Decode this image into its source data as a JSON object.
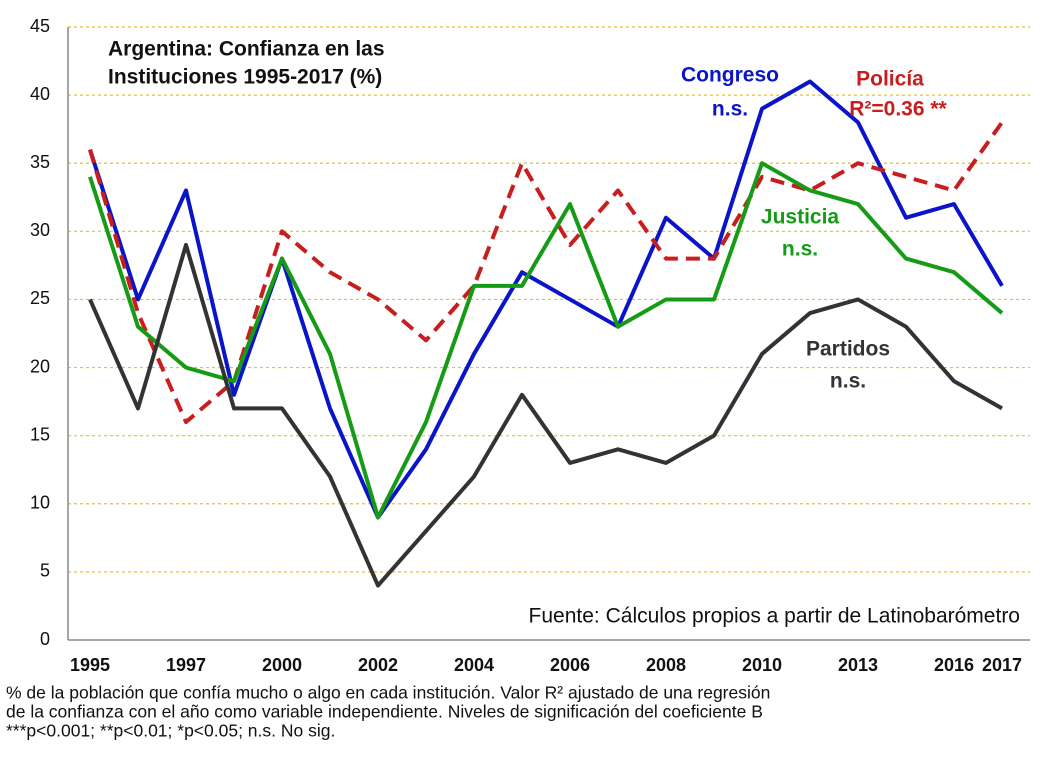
{
  "chart_data": {
    "type": "line",
    "title": [
      "Argentina: Confianza en las",
      "Instituciones 1995-2017 (%)"
    ],
    "categories": [
      "1995",
      null,
      "1997",
      null,
      "2000",
      null,
      "2002",
      null,
      "2004",
      null,
      "2006",
      null,
      "2008",
      null,
      "2010",
      null,
      "2013",
      null,
      "2016",
      "2017"
    ],
    "series": [
      {
        "name": "Congreso",
        "note": "n.s.",
        "color": "#0a14c8",
        "dashed": false,
        "values": [
          36,
          25,
          33,
          18,
          28,
          17,
          9,
          14,
          21,
          27,
          25,
          23,
          31,
          28,
          39,
          41,
          38,
          31,
          32,
          26
        ]
      },
      {
        "name": "Policía",
        "note": "R²=0.36 **",
        "color": "#c81e1e",
        "dashed": true,
        "values": [
          36,
          24,
          16,
          19,
          30,
          27,
          25,
          22,
          26,
          35,
          29,
          33,
          28,
          28,
          34,
          33,
          35,
          34,
          33,
          38
        ]
      },
      {
        "name": "Justicia",
        "note": "n.s.",
        "color": "#169b16",
        "dashed": false,
        "values": [
          34,
          23,
          20,
          19,
          28,
          21,
          9,
          16,
          26,
          26,
          32,
          23,
          25,
          25,
          35,
          33,
          32,
          28,
          27,
          24
        ]
      },
      {
        "name": "Partidos",
        "note": "n.s.",
        "color": "#333333",
        "dashed": false,
        "values": [
          25,
          17,
          29,
          17,
          17,
          12,
          4,
          8,
          12,
          18,
          13,
          14,
          13,
          15,
          21,
          24,
          25,
          23,
          19,
          17
        ]
      }
    ],
    "ylim": [
      0,
      45
    ],
    "yticks": [
      0,
      5,
      10,
      15,
      20,
      25,
      30,
      35,
      40,
      45
    ],
    "grid": true,
    "source": "Fuente: Cálculos propios a partir de Latinobarómetro",
    "footnote": [
      "% de la población que confía mucho o algo en cada institución. Valor R² ajustado de una regresión",
      "de la confianza con el año como variable independiente. Niveles de significación del coeficiente B",
      "***p<0.001; **p<0.01; *p<0.05; n.s. No sig."
    ]
  }
}
